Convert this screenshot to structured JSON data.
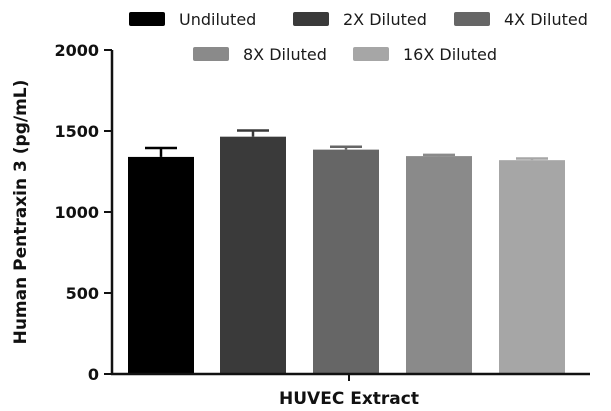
{
  "chart_data": {
    "type": "bar",
    "title": "",
    "xlabel": "HUVEC Extract",
    "ylabel": "Human Pentraxin 3 (pg/mL)",
    "ylim": [
      0,
      2000
    ],
    "yticks": [
      0,
      500,
      1000,
      1500,
      2000
    ],
    "grid": false,
    "legend_position": "top",
    "series": [
      {
        "name": "Undiluted",
        "value": 1340,
        "error": 55,
        "color": "#000000"
      },
      {
        "name": "2X Diluted",
        "value": 1465,
        "error": 38,
        "color": "#3a3a3a"
      },
      {
        "name": "4X Diluted",
        "value": 1385,
        "error": 18,
        "color": "#666666"
      },
      {
        "name": "8X Diluted",
        "value": 1345,
        "error": 8,
        "color": "#8a8a8a"
      },
      {
        "name": "16X Diluted",
        "value": 1320,
        "error": 10,
        "color": "#a6a6a6"
      }
    ]
  }
}
